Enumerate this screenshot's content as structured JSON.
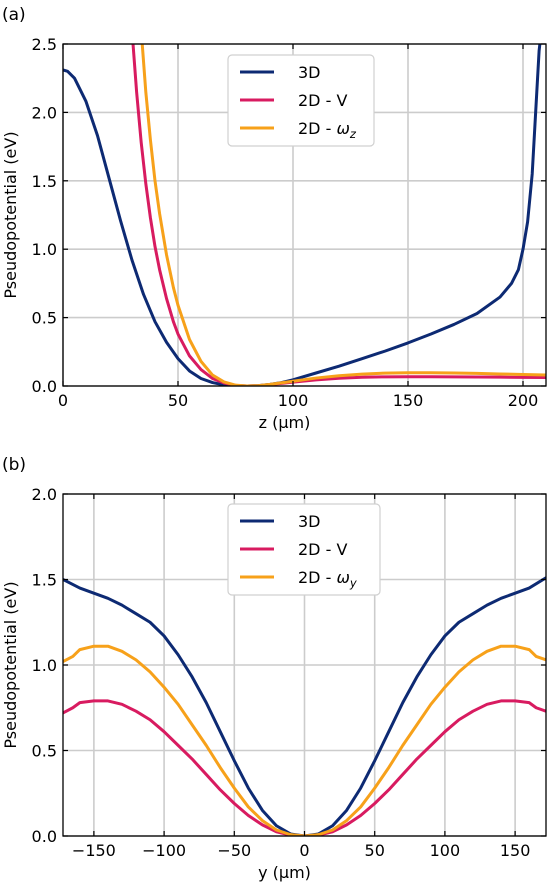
{
  "colors": {
    "3d": "#0d2a73",
    "2d_v": "#d81b60",
    "2d_w": "#f7a11a",
    "grid": "#cccccc",
    "frame": "#000000"
  },
  "chart_data": [
    {
      "panel_label": "(a)",
      "type": "line",
      "xlabel": "z (µm)",
      "ylabel": "Pseudopotential (eV)",
      "xlim": [
        0,
        210
      ],
      "ylim": [
        0,
        2.5
      ],
      "xticks": [
        0,
        50,
        100,
        150,
        200
      ],
      "xtick_labels": [
        "0",
        "50",
        "100",
        "150",
        "200"
      ],
      "yticks": [
        0,
        0.5,
        1.0,
        1.5,
        2.0,
        2.5
      ],
      "ytick_labels": [
        "0.0",
        "0.5",
        "1.0",
        "1.5",
        "2.0",
        "2.5"
      ],
      "grid": true,
      "legend_position": "top-center",
      "series": [
        {
          "name": "3D",
          "color_key": "3d",
          "x": [
            0,
            2,
            5,
            10,
            15,
            20,
            25,
            30,
            35,
            40,
            45,
            50,
            55,
            60,
            65,
            70,
            75,
            80,
            85,
            90,
            95,
            100,
            110,
            120,
            130,
            140,
            150,
            160,
            170,
            180,
            190,
            195,
            198,
            200,
            202,
            204,
            205,
            206,
            207,
            208
          ],
          "y": [
            2.31,
            2.3,
            2.25,
            2.08,
            1.83,
            1.52,
            1.21,
            0.92,
            0.67,
            0.47,
            0.32,
            0.2,
            0.11,
            0.055,
            0.025,
            0.008,
            0.002,
            0.0,
            0.003,
            0.012,
            0.025,
            0.045,
            0.095,
            0.145,
            0.2,
            0.255,
            0.315,
            0.38,
            0.45,
            0.53,
            0.65,
            0.75,
            0.85,
            1.0,
            1.2,
            1.55,
            1.85,
            2.15,
            2.45,
            2.6
          ]
        },
        {
          "name": "2D - V",
          "color_key": "2d_v",
          "x": [
            30,
            32,
            34,
            36,
            38,
            40,
            42,
            45,
            48,
            50,
            55,
            60,
            65,
            70,
            75,
            80,
            85,
            90,
            100,
            110,
            120,
            130,
            140,
            150,
            160,
            170,
            180,
            190,
            200,
            210
          ],
          "y": [
            2.6,
            2.15,
            1.78,
            1.48,
            1.23,
            1.02,
            0.85,
            0.64,
            0.47,
            0.38,
            0.22,
            0.12,
            0.055,
            0.022,
            0.005,
            0.0,
            0.002,
            0.01,
            0.028,
            0.045,
            0.057,
            0.064,
            0.067,
            0.068,
            0.068,
            0.067,
            0.066,
            0.065,
            0.063,
            0.062
          ]
        },
        {
          "name": "2D - ω_z",
          "color_key": "2d_w",
          "x": [
            34,
            36,
            38,
            40,
            42,
            45,
            48,
            50,
            55,
            60,
            65,
            70,
            75,
            80,
            85,
            90,
            100,
            110,
            120,
            130,
            140,
            150,
            160,
            170,
            180,
            190,
            200,
            210
          ],
          "y": [
            2.6,
            2.15,
            1.8,
            1.5,
            1.26,
            0.96,
            0.72,
            0.59,
            0.34,
            0.18,
            0.08,
            0.03,
            0.006,
            0.0,
            0.003,
            0.012,
            0.035,
            0.058,
            0.075,
            0.087,
            0.094,
            0.097,
            0.097,
            0.095,
            0.092,
            0.088,
            0.084,
            0.08
          ]
        }
      ]
    },
    {
      "panel_label": "(b)",
      "type": "line",
      "xlabel": "y (µm)",
      "ylabel": "Pseudopotential (eV)",
      "xlim": [
        -172,
        172
      ],
      "ylim": [
        0,
        2.0
      ],
      "xticks": [
        -150,
        -100,
        -50,
        0,
        50,
        100,
        150
      ],
      "xtick_labels": [
        "−150",
        "−100",
        "−50",
        "0",
        "50",
        "100",
        "150"
      ],
      "yticks": [
        0,
        0.5,
        1.0,
        1.5,
        2.0
      ],
      "ytick_labels": [
        "0.0",
        "0.5",
        "1.0",
        "1.5",
        "2.0"
      ],
      "grid": true,
      "legend_position": "top-center",
      "series": [
        {
          "name": "3D",
          "color_key": "3d",
          "x": [
            -172,
            -160,
            -150,
            -140,
            -130,
            -120,
            -110,
            -100,
            -90,
            -80,
            -70,
            -60,
            -50,
            -40,
            -30,
            -20,
            -10,
            0,
            10,
            20,
            30,
            40,
            50,
            60,
            70,
            80,
            90,
            100,
            110,
            120,
            130,
            140,
            150,
            160,
            172
          ],
          "y": [
            1.5,
            1.45,
            1.42,
            1.39,
            1.35,
            1.3,
            1.25,
            1.17,
            1.06,
            0.93,
            0.78,
            0.61,
            0.44,
            0.28,
            0.15,
            0.06,
            0.012,
            0.0,
            0.012,
            0.06,
            0.15,
            0.28,
            0.44,
            0.61,
            0.78,
            0.93,
            1.06,
            1.17,
            1.25,
            1.3,
            1.35,
            1.39,
            1.42,
            1.45,
            1.51
          ]
        },
        {
          "name": "2D - V",
          "color_key": "2d_v",
          "x": [
            -172,
            -165,
            -160,
            -150,
            -145,
            -140,
            -130,
            -120,
            -110,
            -100,
            -90,
            -80,
            -70,
            -60,
            -50,
            -40,
            -30,
            -20,
            -10,
            0,
            10,
            20,
            30,
            40,
            50,
            60,
            70,
            80,
            90,
            100,
            110,
            120,
            130,
            140,
            145,
            150,
            160,
            165,
            172
          ],
          "y": [
            0.72,
            0.75,
            0.78,
            0.79,
            0.79,
            0.79,
            0.77,
            0.73,
            0.68,
            0.61,
            0.53,
            0.45,
            0.36,
            0.27,
            0.19,
            0.12,
            0.065,
            0.025,
            0.005,
            0.0,
            0.005,
            0.025,
            0.065,
            0.12,
            0.19,
            0.27,
            0.36,
            0.45,
            0.53,
            0.61,
            0.68,
            0.73,
            0.77,
            0.79,
            0.79,
            0.79,
            0.78,
            0.75,
            0.73
          ]
        },
        {
          "name": "2D - ω_y",
          "color_key": "2d_w",
          "x": [
            -172,
            -165,
            -160,
            -150,
            -145,
            -140,
            -130,
            -120,
            -110,
            -100,
            -90,
            -80,
            -70,
            -60,
            -50,
            -40,
            -30,
            -20,
            -10,
            0,
            10,
            20,
            30,
            40,
            50,
            60,
            70,
            80,
            90,
            100,
            110,
            120,
            130,
            140,
            145,
            150,
            160,
            165,
            172
          ],
          "y": [
            1.02,
            1.05,
            1.09,
            1.11,
            1.11,
            1.11,
            1.08,
            1.03,
            0.96,
            0.87,
            0.77,
            0.65,
            0.53,
            0.4,
            0.28,
            0.17,
            0.09,
            0.035,
            0.008,
            0.0,
            0.008,
            0.035,
            0.09,
            0.17,
            0.28,
            0.4,
            0.53,
            0.65,
            0.77,
            0.87,
            0.96,
            1.03,
            1.08,
            1.11,
            1.11,
            1.11,
            1.09,
            1.05,
            1.03
          ]
        }
      ]
    }
  ]
}
